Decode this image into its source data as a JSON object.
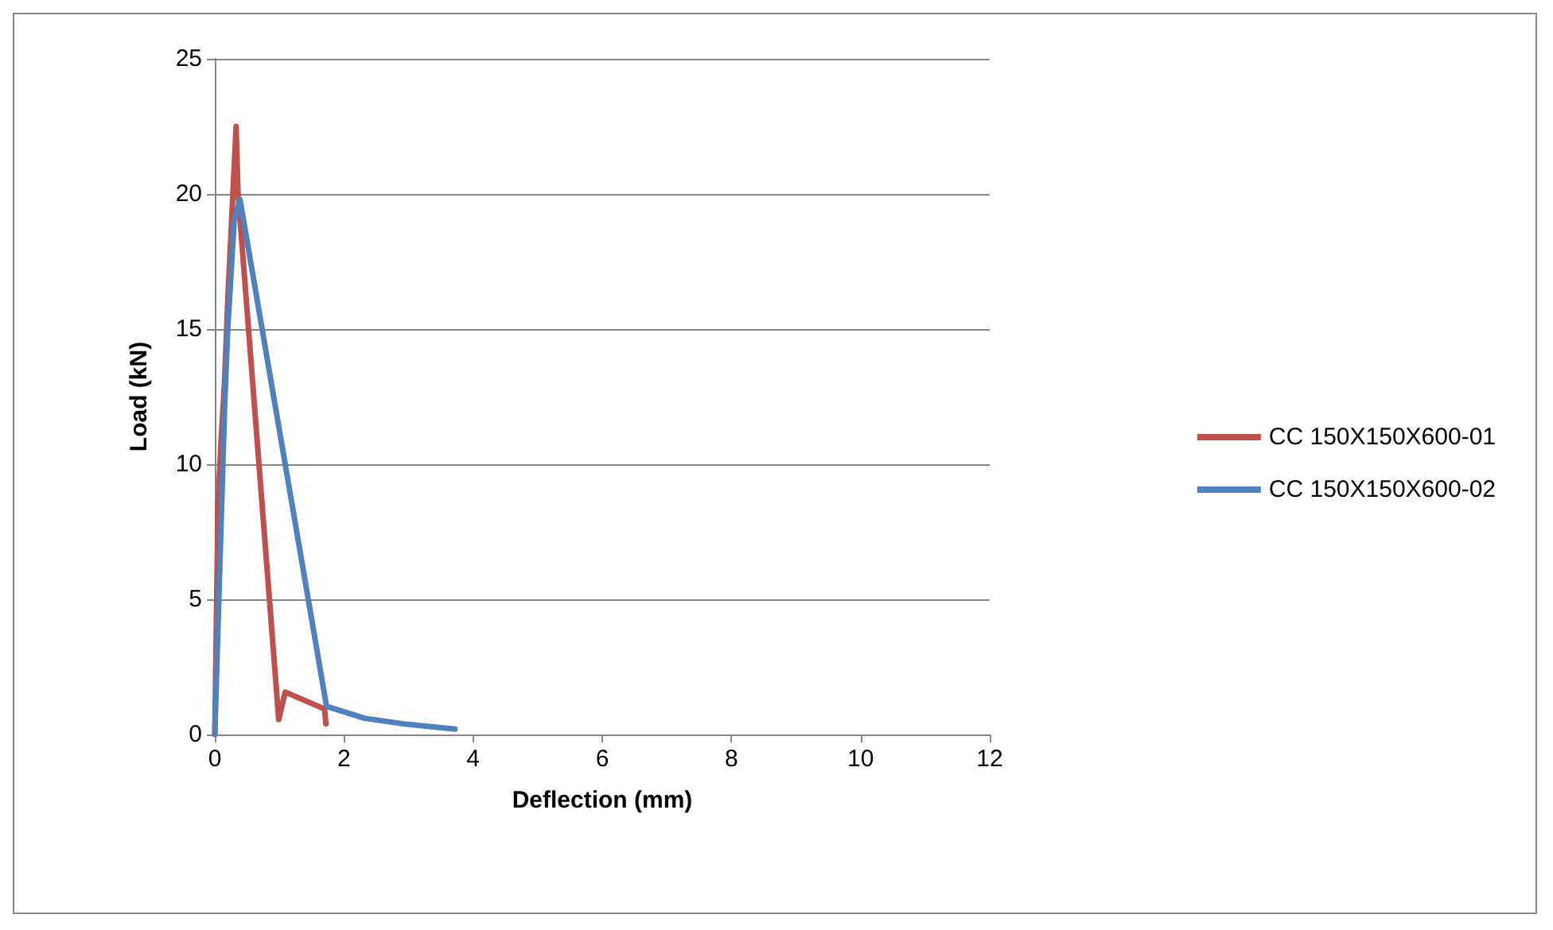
{
  "chart_data": {
    "type": "line",
    "xlabel": "Deflection (mm)",
    "ylabel": "Load (kN)",
    "xlim": [
      0,
      12
    ],
    "xticks": [
      0,
      2,
      4,
      6,
      8,
      10,
      12
    ],
    "ylim": [
      0,
      25
    ],
    "yticks": [
      0,
      5,
      10,
      15,
      20,
      25
    ],
    "grid": "y",
    "legend": "right",
    "marker": "none",
    "line_style": "solid",
    "series": [
      {
        "name": "CC 150X150X600-01",
        "color": "#c0504d",
        "x": [
          0,
          0.05,
          0.1,
          0.15,
          0.2,
          0.25,
          0.3,
          0.33,
          0.36,
          0.99,
          1.09,
          1.7,
          1.72
        ],
        "values": [
          0,
          8.5,
          11,
          13,
          16,
          18.5,
          21,
          22.5,
          20,
          0.55,
          1.57,
          0.94,
          0.4
        ]
      },
      {
        "name": "CC 150X150X600-02",
        "color": "#4f81bd",
        "x": [
          0,
          0.05,
          0.1,
          0.15,
          0.2,
          0.25,
          0.3,
          0.39,
          1.73,
          2.32,
          2.9,
          3.72
        ],
        "values": [
          0,
          4,
          8,
          12,
          15,
          17,
          19,
          19.8,
          1.04,
          0.6,
          0.4,
          0.2
        ]
      }
    ]
  }
}
